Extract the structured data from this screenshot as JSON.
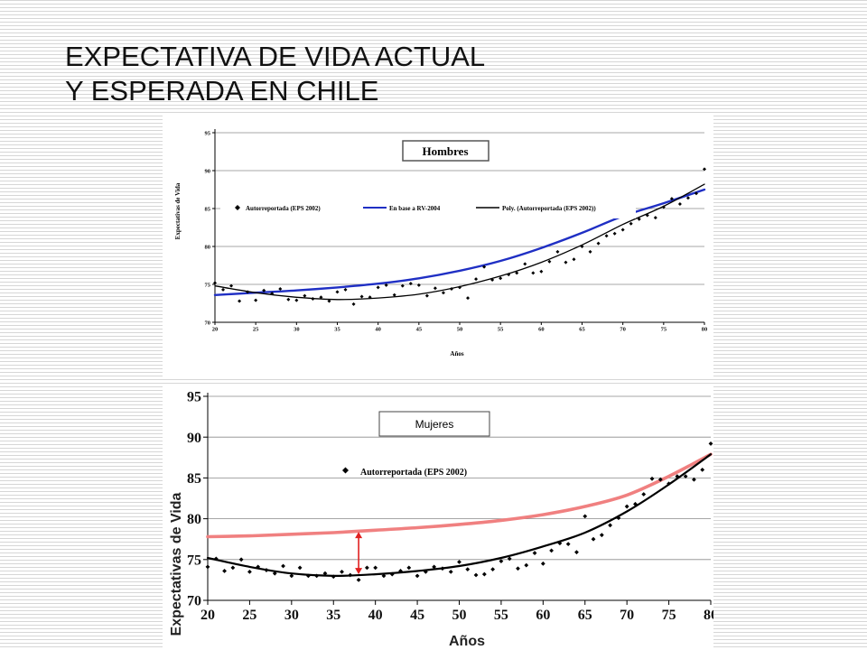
{
  "slide": {
    "title_line1": "EXPECTATIVA DE VIDA ACTUAL",
    "title_line2": "Y ESPERADA EN CHILE"
  },
  "colors": {
    "blue_series": "#1f2fc4",
    "black_series": "#000000",
    "pink_series": "#f08080",
    "arrow": "#e02020"
  },
  "chart_data": [
    {
      "type": "scatter",
      "panel_label": "Hombres",
      "ylabel": "Expectativas de Vida",
      "xlabel": "Años",
      "xlim": [
        20,
        80
      ],
      "ylim": [
        70,
        95
      ],
      "x_ticks": [
        "20",
        "25",
        "30",
        "35",
        "40",
        "45",
        "50",
        "55",
        "60",
        "65",
        "70",
        "75",
        "80"
      ],
      "y_ticks": [
        "70",
        "75",
        "80",
        "85",
        "90",
        "95"
      ],
      "grid": "horizontal",
      "legend_position": "top",
      "legend": [
        "Autorreportada (EPS 2002)",
        "En base a RV-2004",
        "Poly. (Autorreportada (EPS 2002))"
      ],
      "series": [
        {
          "name": "Autorreportada (EPS 2002)",
          "style": "diamond-markers",
          "x": [
            20,
            21,
            22,
            23,
            24,
            25,
            26,
            27,
            28,
            29,
            30,
            31,
            32,
            33,
            34,
            35,
            36,
            37,
            38,
            39,
            40,
            41,
            42,
            43,
            44,
            45,
            46,
            47,
            48,
            49,
            50,
            51,
            52,
            53,
            54,
            55,
            56,
            57,
            58,
            59,
            60,
            61,
            62,
            63,
            64,
            65,
            66,
            67,
            68,
            69,
            70,
            71,
            72,
            73,
            74,
            75,
            76,
            77,
            78,
            79,
            80
          ],
          "y": [
            75.2,
            74.3,
            74.8,
            72.8,
            74.0,
            72.9,
            74.2,
            73.8,
            74.4,
            73.0,
            72.9,
            73.5,
            73.1,
            73.3,
            72.8,
            74.0,
            74.3,
            72.4,
            73.4,
            73.3,
            74.6,
            74.9,
            73.6,
            74.8,
            75.1,
            74.9,
            73.5,
            74.5,
            73.9,
            74.4,
            74.6,
            73.2,
            75.7,
            77.3,
            75.6,
            75.8,
            76.3,
            76.5,
            77.7,
            76.5,
            76.7,
            78.0,
            79.3,
            77.9,
            78.3,
            80.0,
            79.3,
            80.4,
            81.4,
            81.7,
            82.2,
            83.0,
            83.6,
            84.1,
            83.8,
            85.2,
            86.3,
            85.6,
            86.4,
            87.0,
            90.2
          ]
        },
        {
          "name": "En base a RV-2004",
          "style": "line-blue",
          "x": [
            20,
            25,
            30,
            35,
            40,
            45,
            50,
            55,
            60,
            65,
            70,
            75,
            80
          ],
          "y": [
            73.6,
            73.9,
            74.2,
            74.6,
            75.1,
            75.8,
            76.8,
            78.1,
            79.8,
            81.8,
            84.0,
            85.7,
            87.5
          ]
        },
        {
          "name": "Poly. (Autorreportada (EPS 2002))",
          "style": "line-black",
          "x": [
            20,
            25,
            30,
            35,
            40,
            45,
            50,
            55,
            60,
            65,
            70,
            75,
            80
          ],
          "y": [
            74.8,
            73.9,
            73.3,
            73.0,
            73.2,
            73.7,
            74.7,
            76.1,
            77.9,
            80.2,
            82.9,
            85.3,
            88.2
          ]
        }
      ]
    },
    {
      "type": "scatter",
      "panel_label": "Mujeres",
      "ylabel": "Expectativas de Vida",
      "xlabel": "Años",
      "xlim": [
        20,
        80
      ],
      "ylim": [
        70,
        95
      ],
      "x_ticks": [
        "20",
        "25",
        "30",
        "35",
        "40",
        "45",
        "50",
        "55",
        "60",
        "65",
        "70",
        "75",
        "80"
      ],
      "y_ticks": [
        "70",
        "75",
        "80",
        "85",
        "90",
        "95"
      ],
      "grid": "horizontal",
      "legend_position": "top",
      "legend": [
        "Autorreportada (EPS 2002)"
      ],
      "annotation": "red double arrow at age 38 between the two curves",
      "arrow": {
        "x": 38,
        "y_from": 78.4,
        "y_to": 73.2
      },
      "series": [
        {
          "name": "Autorreportada (EPS 2002)",
          "style": "diamond-markers",
          "x": [
            20,
            21,
            22,
            23,
            24,
            25,
            26,
            27,
            28,
            29,
            30,
            31,
            32,
            33,
            34,
            35,
            36,
            37,
            38,
            39,
            40,
            41,
            42,
            43,
            44,
            45,
            46,
            47,
            48,
            49,
            50,
            51,
            52,
            53,
            54,
            55,
            56,
            57,
            58,
            59,
            60,
            61,
            62,
            63,
            64,
            65,
            66,
            67,
            68,
            69,
            70,
            71,
            72,
            73,
            74,
            75,
            76,
            77,
            78,
            79,
            80
          ],
          "y": [
            74.1,
            75.1,
            73.6,
            74.0,
            75.0,
            73.5,
            74.1,
            73.7,
            73.3,
            74.2,
            73.0,
            74.0,
            73.0,
            73.0,
            73.3,
            72.9,
            73.5,
            73.1,
            72.5,
            74.0,
            74.0,
            73.0,
            73.2,
            73.6,
            74.0,
            73.0,
            73.5,
            74.1,
            73.9,
            73.5,
            74.7,
            73.8,
            73.1,
            73.2,
            73.8,
            74.8,
            75.1,
            73.9,
            74.3,
            75.8,
            74.5,
            76.1,
            77.0,
            76.9,
            75.9,
            80.3,
            77.5,
            78.0,
            79.2,
            80.1,
            81.5,
            81.8,
            83.0,
            84.9,
            84.8,
            84.3,
            85.2,
            85.2,
            84.8,
            86.0,
            89.2
          ]
        },
        {
          "style": "line-pink",
          "x": [
            20,
            25,
            30,
            35,
            40,
            45,
            50,
            55,
            60,
            65,
            70,
            75,
            80
          ],
          "y": [
            77.8,
            77.9,
            78.1,
            78.3,
            78.6,
            78.9,
            79.3,
            79.8,
            80.5,
            81.5,
            82.9,
            85.2,
            87.9
          ]
        },
        {
          "style": "line-black",
          "x": [
            20,
            25,
            30,
            35,
            40,
            45,
            50,
            55,
            60,
            65,
            70,
            75,
            80
          ],
          "y": [
            75.2,
            74.1,
            73.3,
            73.0,
            73.2,
            73.6,
            74.2,
            75.2,
            76.6,
            78.3,
            80.9,
            84.2,
            87.9
          ]
        }
      ]
    }
  ]
}
